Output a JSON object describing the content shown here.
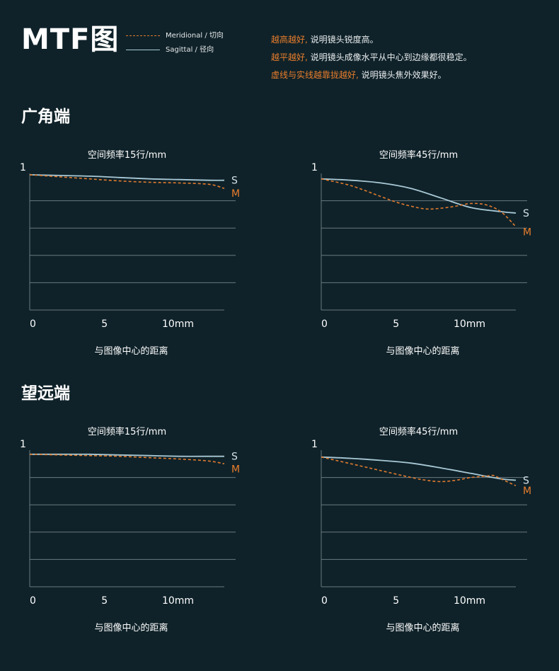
{
  "header": {
    "title": "MTF图",
    "legend": [
      {
        "label": "Meridional / 切向",
        "style": "dashed",
        "color": "#e07a2e"
      },
      {
        "label": "Sagittal / 径向",
        "style": "solid",
        "color": "#a9c9d6"
      }
    ],
    "notes": [
      {
        "highlight": "越高越好,",
        "rest": " 说明镜头锐度高。"
      },
      {
        "highlight": "越平越好,",
        "rest": " 说明镜头成像水平从中心到边缘都很稳定。"
      },
      {
        "highlight": "虚线与实线越靠拢越好,",
        "rest": " 说明镜头焦外效果好。"
      }
    ]
  },
  "sections": [
    {
      "title": "广角端"
    },
    {
      "title": "望远端"
    }
  ],
  "chart_data": [
    {
      "type": "line",
      "section": "广角端",
      "title": "空间频率15行/mm",
      "xlabel": "与图像中心的距离",
      "ylabel": "",
      "xlim": [
        0,
        13
      ],
      "ylim": [
        0,
        1
      ],
      "grid": true,
      "xticks": [
        "0",
        "5",
        "10mm"
      ],
      "yticks": [
        "1"
      ],
      "series": [
        {
          "name": "S",
          "x": [
            0,
            2,
            4,
            6,
            8,
            10,
            12,
            13
          ],
          "values": [
            0.99,
            0.985,
            0.98,
            0.97,
            0.96,
            0.955,
            0.95,
            0.95
          ]
        },
        {
          "name": "M",
          "x": [
            0,
            2,
            4,
            6,
            8,
            10,
            12,
            13
          ],
          "values": [
            0.99,
            0.975,
            0.96,
            0.945,
            0.935,
            0.93,
            0.92,
            0.89
          ]
        }
      ]
    },
    {
      "type": "line",
      "section": "广角端",
      "title": "空间频率45行/mm",
      "xlabel": "与图像中心的距离",
      "ylabel": "",
      "xlim": [
        0,
        13
      ],
      "ylim": [
        0,
        1
      ],
      "grid": true,
      "xticks": [
        "0",
        "5",
        "10mm"
      ],
      "yticks": [
        "1"
      ],
      "series": [
        {
          "name": "S",
          "x": [
            0,
            2,
            4,
            6,
            8,
            10,
            12,
            13
          ],
          "values": [
            0.96,
            0.95,
            0.93,
            0.89,
            0.82,
            0.75,
            0.72,
            0.71
          ]
        },
        {
          "name": "M",
          "x": [
            0,
            2,
            4,
            5,
            6,
            7,
            8,
            9,
            10,
            11,
            12,
            13
          ],
          "values": [
            0.96,
            0.91,
            0.83,
            0.79,
            0.76,
            0.74,
            0.745,
            0.76,
            0.78,
            0.77,
            0.72,
            0.61
          ]
        }
      ]
    },
    {
      "type": "line",
      "section": "望远端",
      "title": "空间频率15行/mm",
      "xlabel": "与图像中心的距离",
      "ylabel": "",
      "xlim": [
        0,
        13
      ],
      "ylim": [
        0,
        1
      ],
      "grid": true,
      "xticks": [
        "0",
        "5",
        "10mm"
      ],
      "yticks": [
        "1"
      ],
      "series": [
        {
          "name": "S",
          "x": [
            0,
            2,
            4,
            6,
            8,
            10,
            12,
            13
          ],
          "values": [
            0.97,
            0.97,
            0.97,
            0.965,
            0.96,
            0.955,
            0.955,
            0.955
          ]
        },
        {
          "name": "M",
          "x": [
            0,
            2,
            4,
            6,
            8,
            10,
            12,
            13
          ],
          "values": [
            0.97,
            0.965,
            0.96,
            0.955,
            0.945,
            0.935,
            0.92,
            0.9
          ]
        }
      ]
    },
    {
      "type": "line",
      "section": "望远端",
      "title": "空间频率45行/mm",
      "xlabel": "与图像中心的距离",
      "ylabel": "",
      "xlim": [
        0,
        13
      ],
      "ylim": [
        0,
        1
      ],
      "grid": true,
      "xticks": [
        "0",
        "5",
        "10mm"
      ],
      "yticks": [
        "1"
      ],
      "series": [
        {
          "name": "S",
          "x": [
            0,
            2,
            4,
            6,
            8,
            10,
            12,
            13
          ],
          "values": [
            0.95,
            0.94,
            0.925,
            0.905,
            0.87,
            0.83,
            0.79,
            0.78
          ]
        },
        {
          "name": "M",
          "x": [
            0,
            2,
            4,
            6,
            7,
            8,
            9,
            10,
            11,
            11.5,
            12,
            13
          ],
          "values": [
            0.95,
            0.9,
            0.85,
            0.8,
            0.78,
            0.77,
            0.78,
            0.8,
            0.81,
            0.815,
            0.79,
            0.74
          ]
        }
      ]
    }
  ]
}
